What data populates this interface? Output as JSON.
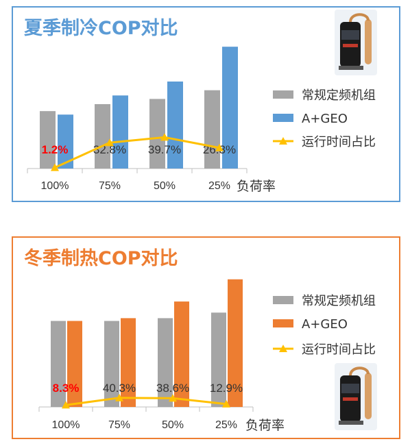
{
  "colors": {
    "summer_accent": "#5b9bd5",
    "winter_accent": "#ed7d31",
    "conventional": "#a5a5a5",
    "summer_geo": "#5b9bd5",
    "winter_geo": "#ed7d31",
    "share_line": "#ffc000",
    "highlight_label": "#ff0000"
  },
  "chart_data": [
    {
      "type": "bar",
      "title": "夏季制冷COP对比",
      "xlabel": "负荷率",
      "ylabel": "",
      "categories": [
        "100%",
        "75%",
        "50%",
        "25%"
      ],
      "series": [
        {
          "name": "常规定频机组",
          "type": "bar",
          "values": [
            3.3,
            3.7,
            4.0,
            4.5
          ]
        },
        {
          "name": "A+GEO",
          "type": "bar",
          "values": [
            3.1,
            4.2,
            5.0,
            7.0
          ]
        },
        {
          "name": "运行时间占比",
          "type": "line",
          "marker": "triangle",
          "values": [
            1.2,
            32.8,
            39.7,
            26.3
          ]
        }
      ],
      "point_labels": [
        "1.2%",
        "32.8%",
        "39.7%",
        "26.3%"
      ],
      "grid": false,
      "legend": "right",
      "decoration": "compressor-image"
    },
    {
      "type": "bar",
      "title": "冬季制热COP对比",
      "xlabel": "负荷率",
      "ylabel": "",
      "categories": [
        "100%",
        "75%",
        "50%",
        "25%"
      ],
      "series": [
        {
          "name": "常规定频机组",
          "type": "bar",
          "values": [
            3.1,
            3.1,
            3.2,
            3.4
          ]
        },
        {
          "name": "A+GEO",
          "type": "bar",
          "values": [
            3.1,
            3.2,
            3.8,
            4.6
          ]
        },
        {
          "name": "运行时间占比",
          "type": "line",
          "marker": "triangle",
          "values": [
            8.3,
            40.3,
            38.6,
            12.9
          ]
        }
      ],
      "point_labels": [
        "8.3%",
        "40.3%",
        "38.6%",
        "12.9%"
      ],
      "grid": false,
      "legend": "right",
      "decoration": "compressor-image"
    }
  ]
}
